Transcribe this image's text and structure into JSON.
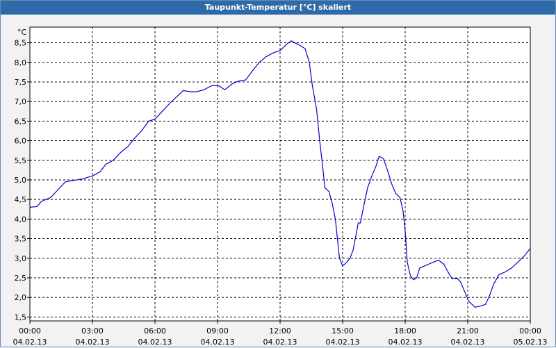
{
  "window": {
    "title": "Taupunkt-Temperatur [°C] skaliert"
  },
  "chart_data": {
    "type": "line",
    "title": "Taupunkt-Temperatur [°C] skaliert",
    "ylabel": "°C",
    "xlabel": "",
    "ylim": [
      1.4,
      8.9
    ],
    "xlim": [
      0,
      24
    ],
    "grid": true,
    "y_ticks": [
      "1,5",
      "2,0",
      "2,5",
      "3,0",
      "3,5",
      "4,0",
      "4,5",
      "5,0",
      "5,5",
      "6,0",
      "6,5",
      "7,0",
      "7,5",
      "8,0",
      "8,5"
    ],
    "y_tick_values": [
      1.5,
      2.0,
      2.5,
      3.0,
      3.5,
      4.0,
      4.5,
      5.0,
      5.5,
      6.0,
      6.5,
      7.0,
      7.5,
      8.0,
      8.5
    ],
    "x_ticks": [
      {
        "value": 0,
        "time": "00:00",
        "date": "04.02.13"
      },
      {
        "value": 3,
        "time": "03:00",
        "date": "04.02.13"
      },
      {
        "value": 6,
        "time": "06:00",
        "date": "04.02.13"
      },
      {
        "value": 9,
        "time": "09:00",
        "date": "04.02.13"
      },
      {
        "value": 12,
        "time": "12:00",
        "date": "04.02.13"
      },
      {
        "value": 15,
        "time": "15:00",
        "date": "04.02.13"
      },
      {
        "value": 18,
        "time": "18:00",
        "date": "04.02.13"
      },
      {
        "value": 21,
        "time": "21:00",
        "date": "04.02.13"
      },
      {
        "value": 24,
        "time": "00:00",
        "date": "05.02.13"
      }
    ],
    "series": [
      {
        "color": "#0000cc",
        "points": [
          [
            0.0,
            4.3
          ],
          [
            0.35,
            4.32
          ],
          [
            0.55,
            4.45
          ],
          [
            1.0,
            4.55
          ],
          [
            1.35,
            4.75
          ],
          [
            1.7,
            4.95
          ],
          [
            2.0,
            4.98
          ],
          [
            2.5,
            5.02
          ],
          [
            3.0,
            5.1
          ],
          [
            3.35,
            5.2
          ],
          [
            3.65,
            5.4
          ],
          [
            4.0,
            5.5
          ],
          [
            4.35,
            5.7
          ],
          [
            4.7,
            5.85
          ],
          [
            5.0,
            6.05
          ],
          [
            5.35,
            6.25
          ],
          [
            5.7,
            6.5
          ],
          [
            6.0,
            6.55
          ],
          [
            6.35,
            6.75
          ],
          [
            6.7,
            6.95
          ],
          [
            7.0,
            7.1
          ],
          [
            7.35,
            7.28
          ],
          [
            7.7,
            7.25
          ],
          [
            8.0,
            7.25
          ],
          [
            8.35,
            7.3
          ],
          [
            8.7,
            7.4
          ],
          [
            9.0,
            7.42
          ],
          [
            9.35,
            7.3
          ],
          [
            9.7,
            7.45
          ],
          [
            10.0,
            7.52
          ],
          [
            10.35,
            7.55
          ],
          [
            10.7,
            7.8
          ],
          [
            11.0,
            8.0
          ],
          [
            11.35,
            8.15
          ],
          [
            11.7,
            8.25
          ],
          [
            12.0,
            8.3
          ],
          [
            12.35,
            8.48
          ],
          [
            12.55,
            8.55
          ],
          [
            12.7,
            8.5
          ],
          [
            12.9,
            8.45
          ],
          [
            13.05,
            8.4
          ],
          [
            13.2,
            8.35
          ],
          [
            13.4,
            8.0
          ],
          [
            13.55,
            7.4
          ],
          [
            13.75,
            6.8
          ],
          [
            13.9,
            6.0
          ],
          [
            14.05,
            5.3
          ],
          [
            14.15,
            4.8
          ],
          [
            14.35,
            4.7
          ],
          [
            14.5,
            4.4
          ],
          [
            14.65,
            4.0
          ],
          [
            14.85,
            3.0
          ],
          [
            15.0,
            2.8
          ],
          [
            15.2,
            2.9
          ],
          [
            15.35,
            3.0
          ],
          [
            15.5,
            3.2
          ],
          [
            15.75,
            3.9
          ],
          [
            15.85,
            3.9
          ],
          [
            16.0,
            4.3
          ],
          [
            16.2,
            4.8
          ],
          [
            16.4,
            5.1
          ],
          [
            16.6,
            5.35
          ],
          [
            16.75,
            5.6
          ],
          [
            16.95,
            5.55
          ],
          [
            17.15,
            5.25
          ],
          [
            17.35,
            4.9
          ],
          [
            17.55,
            4.65
          ],
          [
            17.75,
            4.55
          ],
          [
            17.9,
            4.2
          ],
          [
            18.0,
            3.7
          ],
          [
            18.1,
            2.9
          ],
          [
            18.25,
            2.55
          ],
          [
            18.4,
            2.45
          ],
          [
            18.55,
            2.5
          ],
          [
            18.7,
            2.75
          ],
          [
            19.0,
            2.82
          ],
          [
            19.35,
            2.9
          ],
          [
            19.6,
            2.95
          ],
          [
            19.85,
            2.85
          ],
          [
            20.05,
            2.65
          ],
          [
            20.25,
            2.48
          ],
          [
            20.5,
            2.48
          ],
          [
            20.65,
            2.4
          ],
          [
            20.85,
            2.15
          ],
          [
            21.05,
            1.9
          ],
          [
            21.25,
            1.8
          ],
          [
            21.35,
            1.75
          ],
          [
            21.6,
            1.78
          ],
          [
            21.85,
            1.82
          ],
          [
            22.05,
            2.05
          ],
          [
            22.25,
            2.35
          ],
          [
            22.5,
            2.58
          ],
          [
            22.8,
            2.65
          ],
          [
            23.1,
            2.75
          ],
          [
            23.4,
            2.9
          ],
          [
            23.7,
            3.05
          ],
          [
            24.0,
            3.25
          ]
        ]
      }
    ]
  }
}
